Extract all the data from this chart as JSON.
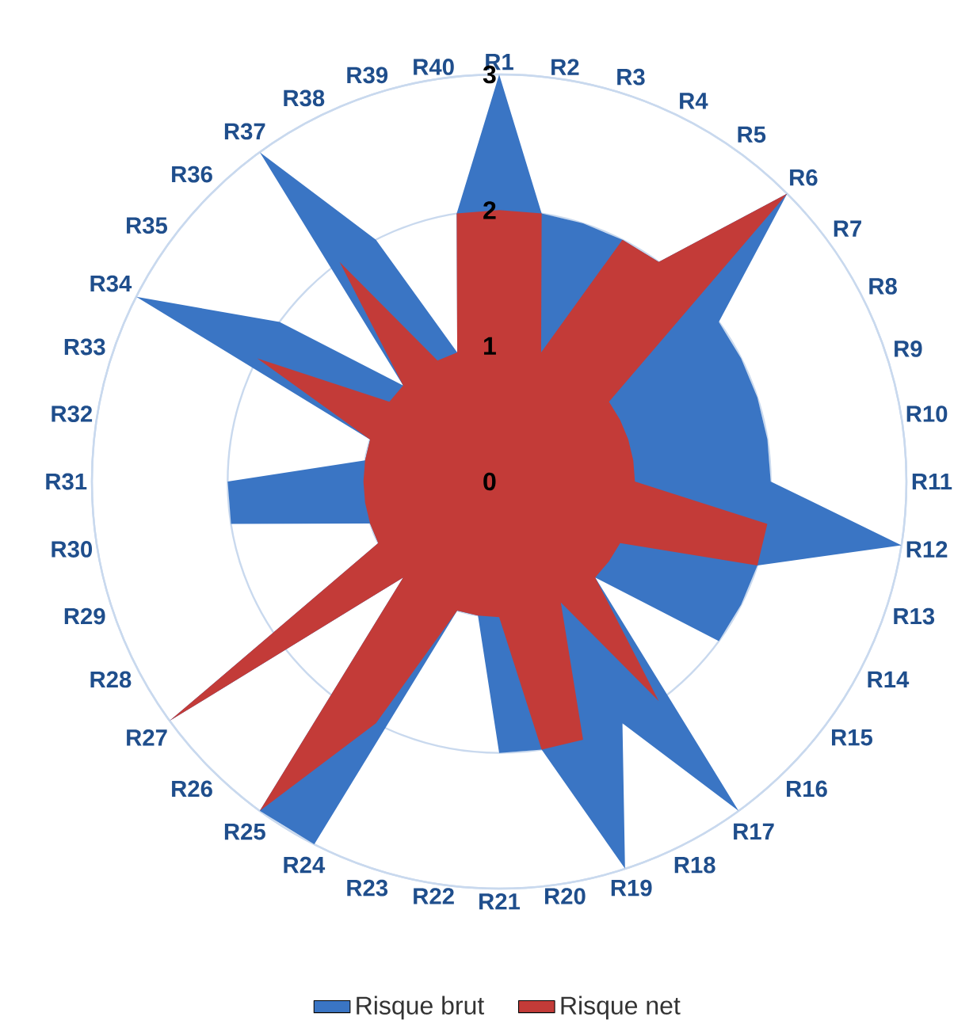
{
  "chart_data": {
    "type": "radar",
    "categories": [
      "R1",
      "R2",
      "R3",
      "R4",
      "R5",
      "R6",
      "R7",
      "R8",
      "R9",
      "R10",
      "R11",
      "R12",
      "R13",
      "R14",
      "R15",
      "R16",
      "R17",
      "R18",
      "R19",
      "R20",
      "R21",
      "R22",
      "R23",
      "R24",
      "R25",
      "R26",
      "R27",
      "R28",
      "R29",
      "R30",
      "R31",
      "R32",
      "R33",
      "R34",
      "R35",
      "R36",
      "R37",
      "R38",
      "R39",
      "R40"
    ],
    "series": [
      {
        "name": "Risque brut",
        "color": "#3a75c4",
        "values": [
          3,
          2,
          2,
          2,
          2,
          3,
          2,
          2,
          2,
          2,
          2,
          3,
          2,
          2,
          2,
          1,
          3,
          2,
          3,
          2,
          2,
          1,
          1,
          3,
          3,
          1,
          3,
          1,
          1,
          2,
          2,
          1,
          1,
          3,
          2,
          1,
          3,
          2,
          1,
          2
        ]
      },
      {
        "name": "Risque net",
        "color": "#c33b38",
        "values": [
          2,
          2,
          1,
          2,
          2,
          3,
          1,
          1,
          1,
          1,
          1,
          2,
          2,
          1,
          1,
          1,
          2,
          1,
          2,
          2,
          1,
          1,
          1,
          2,
          3,
          1,
          3,
          1,
          1,
          1,
          1,
          1,
          1,
          2,
          1,
          1,
          2,
          1,
          1,
          2
        ]
      }
    ],
    "ylim": [
      0,
      3
    ],
    "yticks": [
      0,
      1,
      2,
      3
    ],
    "grid": "y",
    "legend": "bottom"
  }
}
